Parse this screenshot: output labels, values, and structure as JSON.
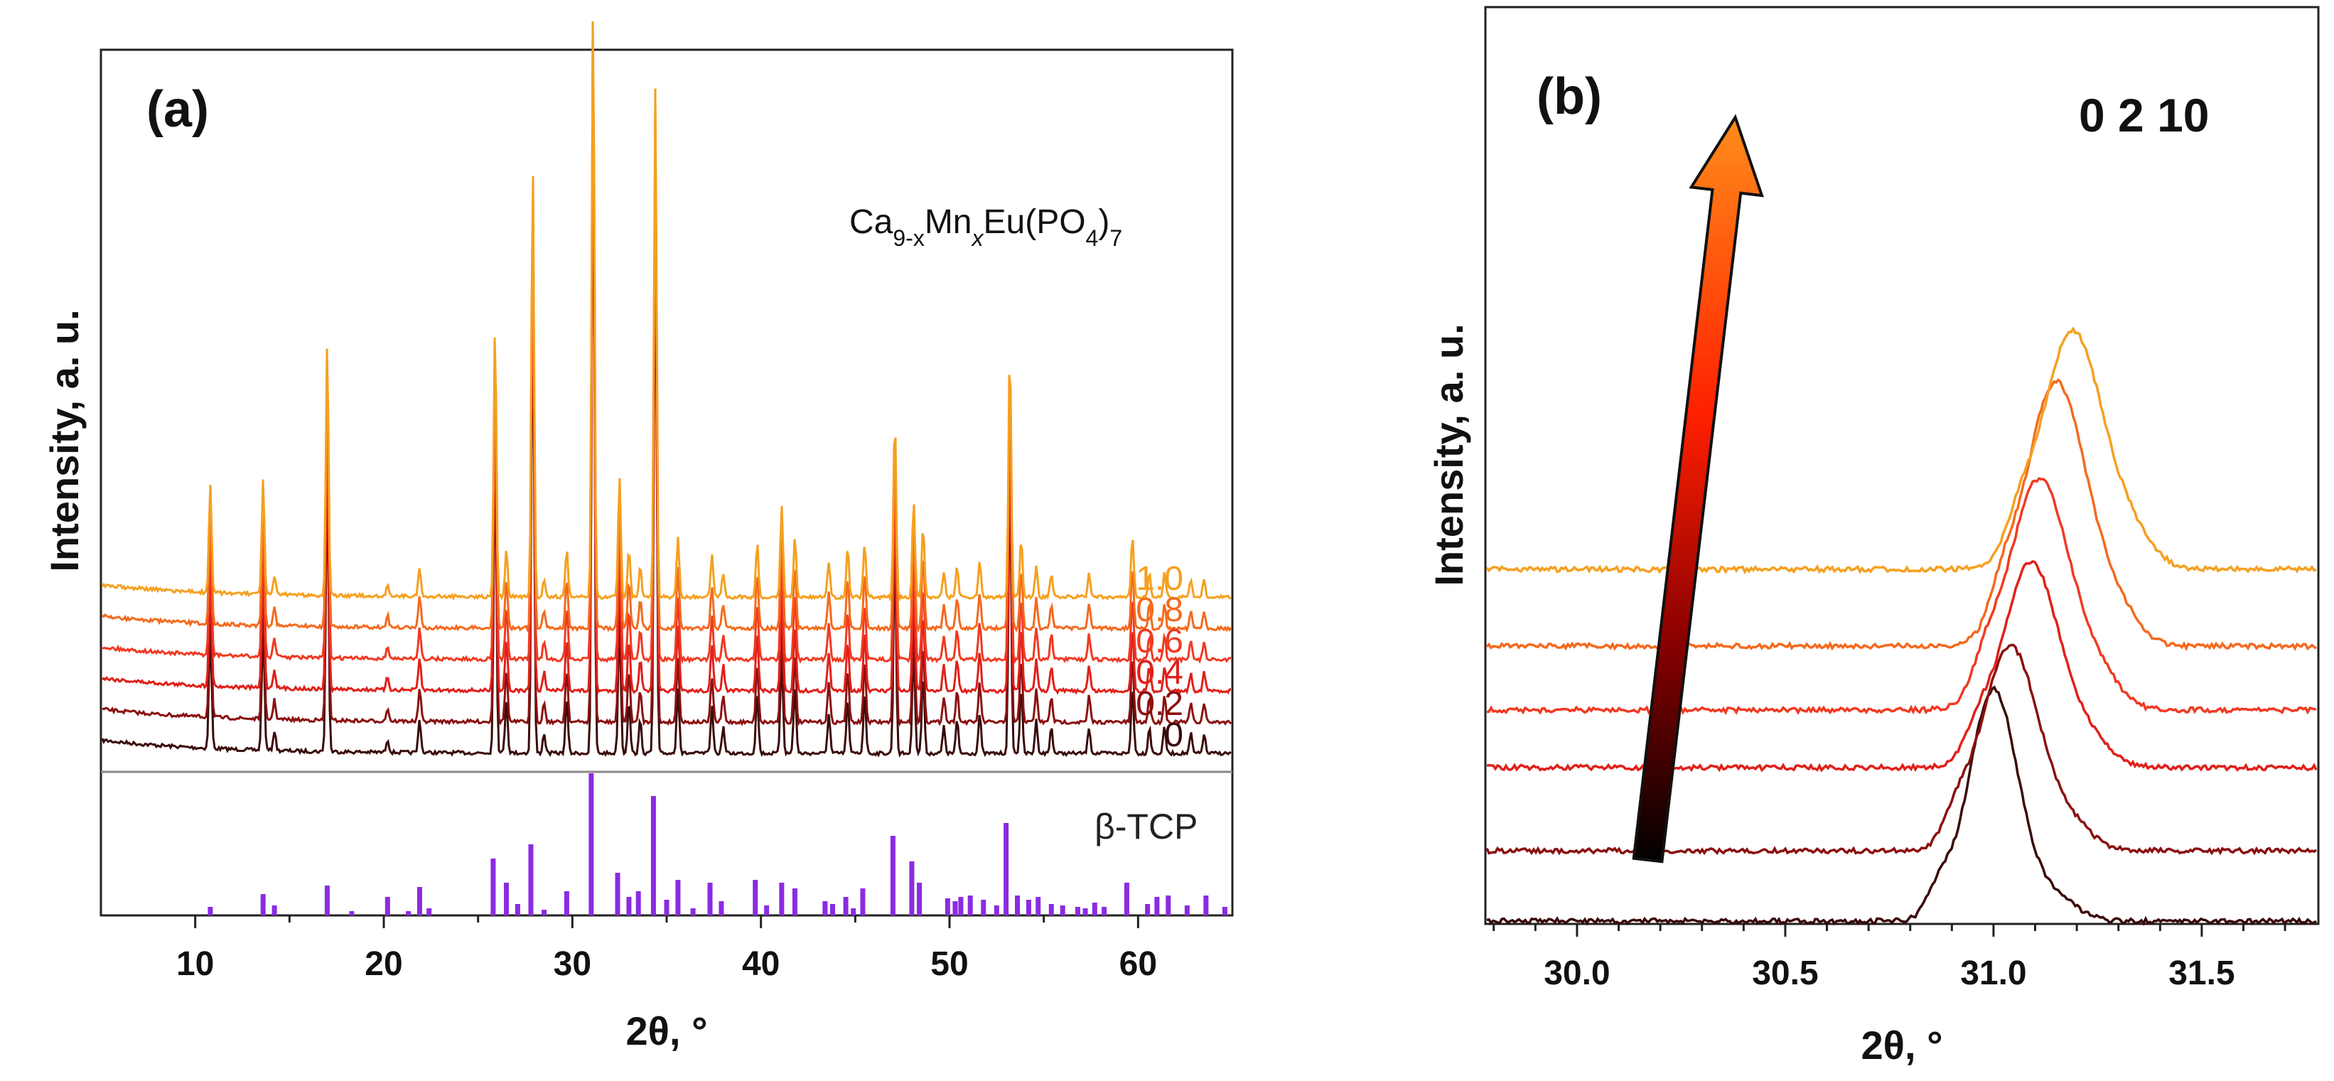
{
  "chart_data": [
    {
      "type": "line",
      "panel_label": "(a)",
      "xlabel": "2θ, °",
      "ylabel": "Intensity, a. u.",
      "xlim": [
        5,
        65
      ],
      "xticks": [
        "10",
        "20",
        "30",
        "40",
        "50",
        "60"
      ],
      "xtick_values": [
        10,
        20,
        30,
        40,
        50,
        60
      ],
      "legend_title": {
        "base1": "Ca",
        "sub1": "9-x",
        "base2": "Mn",
        "sub2": "x",
        "base3": "Eu(PO",
        "sub3": "4",
        "base4": ")",
        "sub4": "7"
      },
      "series": [
        {
          "name": "0",
          "color": "#3b0a0a",
          "offset": 0
        },
        {
          "name": "0.2",
          "color": "#8b1010",
          "offset": 1
        },
        {
          "name": "0.4",
          "color": "#e0201a",
          "offset": 2
        },
        {
          "name": "0.6",
          "color": "#f03a22",
          "offset": 3
        },
        {
          "name": "0.8",
          "color": "#f46a1e",
          "offset": 4
        },
        {
          "name": "1.0",
          "color": "#f5a020",
          "offset": 5
        }
      ],
      "peaks": [
        {
          "x": 10.8,
          "h": 0.18
        },
        {
          "x": 13.6,
          "h": 0.19
        },
        {
          "x": 14.2,
          "h": 0.03
        },
        {
          "x": 17.0,
          "h": 0.42
        },
        {
          "x": 20.2,
          "h": 0.02
        },
        {
          "x": 21.9,
          "h": 0.05
        },
        {
          "x": 25.9,
          "h": 0.45
        },
        {
          "x": 26.5,
          "h": 0.08
        },
        {
          "x": 27.9,
          "h": 0.72
        },
        {
          "x": 28.5,
          "h": 0.03
        },
        {
          "x": 29.7,
          "h": 0.08
        },
        {
          "x": 31.1,
          "h": 1.0
        },
        {
          "x": 32.5,
          "h": 0.2
        },
        {
          "x": 33.0,
          "h": 0.08
        },
        {
          "x": 33.6,
          "h": 0.05
        },
        {
          "x": 34.4,
          "h": 0.85
        },
        {
          "x": 35.6,
          "h": 0.1
        },
        {
          "x": 37.4,
          "h": 0.07
        },
        {
          "x": 38.0,
          "h": 0.04
        },
        {
          "x": 39.8,
          "h": 0.09
        },
        {
          "x": 41.1,
          "h": 0.15
        },
        {
          "x": 41.8,
          "h": 0.1
        },
        {
          "x": 43.6,
          "h": 0.06
        },
        {
          "x": 44.6,
          "h": 0.08
        },
        {
          "x": 45.5,
          "h": 0.09
        },
        {
          "x": 47.1,
          "h": 0.3
        },
        {
          "x": 48.1,
          "h": 0.16
        },
        {
          "x": 48.6,
          "h": 0.12
        },
        {
          "x": 49.7,
          "h": 0.04
        },
        {
          "x": 50.4,
          "h": 0.05
        },
        {
          "x": 51.6,
          "h": 0.06
        },
        {
          "x": 53.2,
          "h": 0.42
        },
        {
          "x": 53.8,
          "h": 0.1
        },
        {
          "x": 54.6,
          "h": 0.05
        },
        {
          "x": 55.4,
          "h": 0.04
        },
        {
          "x": 57.4,
          "h": 0.04
        },
        {
          "x": 59.7,
          "h": 0.1
        },
        {
          "x": 60.6,
          "h": 0.04
        },
        {
          "x": 61.4,
          "h": 0.04
        },
        {
          "x": 62.8,
          "h": 0.03
        },
        {
          "x": 63.5,
          "h": 0.03
        }
      ],
      "reference": {
        "name": "β-TCP",
        "color": "#8a2be2",
        "sticks": [
          {
            "x": 10.8,
            "h": 0.06
          },
          {
            "x": 13.6,
            "h": 0.15
          },
          {
            "x": 14.2,
            "h": 0.07
          },
          {
            "x": 17.0,
            "h": 0.21
          },
          {
            "x": 18.3,
            "h": 0.03
          },
          {
            "x": 20.2,
            "h": 0.13
          },
          {
            "x": 21.3,
            "h": 0.03
          },
          {
            "x": 21.9,
            "h": 0.2
          },
          {
            "x": 22.4,
            "h": 0.05
          },
          {
            "x": 25.8,
            "h": 0.4
          },
          {
            "x": 26.5,
            "h": 0.23
          },
          {
            "x": 27.1,
            "h": 0.08
          },
          {
            "x": 27.8,
            "h": 0.5
          },
          {
            "x": 28.5,
            "h": 0.04
          },
          {
            "x": 29.7,
            "h": 0.17
          },
          {
            "x": 31.0,
            "h": 1.0
          },
          {
            "x": 32.4,
            "h": 0.3
          },
          {
            "x": 33.0,
            "h": 0.13
          },
          {
            "x": 33.5,
            "h": 0.17
          },
          {
            "x": 34.3,
            "h": 0.84
          },
          {
            "x": 35.0,
            "h": 0.11
          },
          {
            "x": 35.6,
            "h": 0.25
          },
          {
            "x": 36.4,
            "h": 0.05
          },
          {
            "x": 37.3,
            "h": 0.23
          },
          {
            "x": 37.9,
            "h": 0.1
          },
          {
            "x": 39.7,
            "h": 0.25
          },
          {
            "x": 40.3,
            "h": 0.07
          },
          {
            "x": 41.1,
            "h": 0.23
          },
          {
            "x": 41.8,
            "h": 0.19
          },
          {
            "x": 43.4,
            "h": 0.1
          },
          {
            "x": 43.8,
            "h": 0.08
          },
          {
            "x": 44.5,
            "h": 0.13
          },
          {
            "x": 44.9,
            "h": 0.05
          },
          {
            "x": 45.4,
            "h": 0.19
          },
          {
            "x": 47.0,
            "h": 0.56
          },
          {
            "x": 48.0,
            "h": 0.38
          },
          {
            "x": 48.4,
            "h": 0.23
          },
          {
            "x": 49.9,
            "h": 0.12
          },
          {
            "x": 50.3,
            "h": 0.1
          },
          {
            "x": 50.6,
            "h": 0.13
          },
          {
            "x": 51.1,
            "h": 0.14
          },
          {
            "x": 51.8,
            "h": 0.11
          },
          {
            "x": 52.5,
            "h": 0.07
          },
          {
            "x": 53.0,
            "h": 0.65
          },
          {
            "x": 53.6,
            "h": 0.14
          },
          {
            "x": 54.2,
            "h": 0.11
          },
          {
            "x": 54.7,
            "h": 0.13
          },
          {
            "x": 55.4,
            "h": 0.08
          },
          {
            "x": 56.0,
            "h": 0.07
          },
          {
            "x": 56.8,
            "h": 0.06
          },
          {
            "x": 57.2,
            "h": 0.05
          },
          {
            "x": 57.7,
            "h": 0.09
          },
          {
            "x": 58.2,
            "h": 0.06
          },
          {
            "x": 59.4,
            "h": 0.23
          },
          {
            "x": 60.5,
            "h": 0.08
          },
          {
            "x": 61.0,
            "h": 0.13
          },
          {
            "x": 61.6,
            "h": 0.14
          },
          {
            "x": 62.6,
            "h": 0.07
          },
          {
            "x": 63.6,
            "h": 0.14
          },
          {
            "x": 64.6,
            "h": 0.06
          }
        ]
      }
    },
    {
      "type": "line",
      "panel_label": "(b)",
      "xlabel": "2θ, °",
      "ylabel": "Intensity, a. u.",
      "xlim": [
        29.78,
        31.78
      ],
      "xticks": [
        "30.0",
        "30.5",
        "31.0",
        "31.5"
      ],
      "xtick_values": [
        30.0,
        30.5,
        31.0,
        31.5
      ],
      "annotation": "0 2 10",
      "arrow": {
        "from_x": 30.17,
        "to_x": 30.38,
        "colors": [
          "#000000",
          "#8b0000",
          "#ff2000",
          "#ff8c1a"
        ]
      },
      "series": [
        {
          "name": "0",
          "color": "#3b0a0a",
          "peak_x": 31.0,
          "peak_h": 1.05,
          "width": 0.06,
          "offset": 0
        },
        {
          "name": "0.2",
          "color": "#8b1010",
          "peak_x": 31.04,
          "peak_h": 0.93,
          "width": 0.07,
          "offset": 0.55
        },
        {
          "name": "0.4",
          "color": "#e0201a",
          "peak_x": 31.09,
          "peak_h": 0.93,
          "width": 0.07,
          "offset": 1.2
        },
        {
          "name": "0.6",
          "color": "#f03a22",
          "peak_x": 31.11,
          "peak_h": 1.05,
          "width": 0.075,
          "offset": 1.65
        },
        {
          "name": "0.8",
          "color": "#f46a1e",
          "peak_x": 31.15,
          "peak_h": 1.2,
          "width": 0.075,
          "offset": 2.15
        },
        {
          "name": "1.0",
          "color": "#f5a020",
          "peak_x": 31.19,
          "peak_h": 1.08,
          "width": 0.075,
          "offset": 2.75
        }
      ]
    }
  ]
}
